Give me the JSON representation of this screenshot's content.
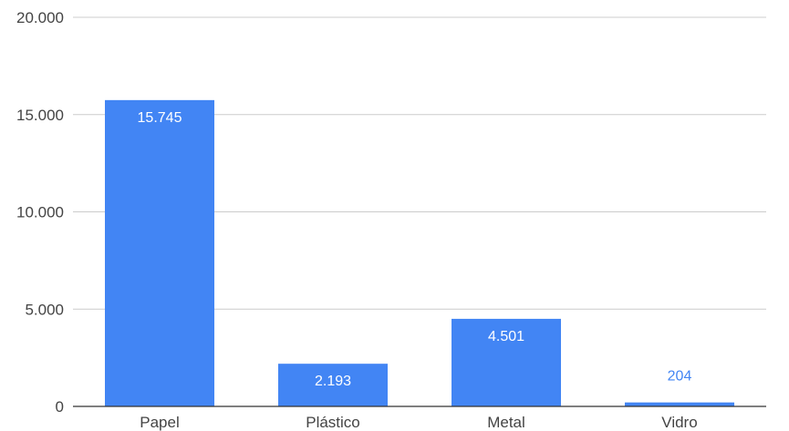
{
  "chart_data": {
    "type": "bar",
    "categories": [
      "Papel",
      "Plástico",
      "Metal",
      "Vidro"
    ],
    "values": [
      15745,
      2193,
      4501,
      204
    ],
    "value_labels": [
      "15.745",
      "2.193",
      "4.501",
      "204"
    ],
    "title": "",
    "xlabel": "",
    "ylabel": "",
    "ylim": [
      0,
      20000
    ],
    "yticks": [
      0,
      5000,
      10000,
      15000,
      20000
    ],
    "ytick_labels": [
      "0",
      "5.000",
      "10.000",
      "15.000",
      "20.000"
    ],
    "grid": true,
    "legend": "none",
    "colors": {
      "bar": "#4285f4",
      "gridline": "#cccccc",
      "axis": "#333333",
      "label_inside": "#ffffff",
      "label_outside": "#4285f4"
    }
  }
}
